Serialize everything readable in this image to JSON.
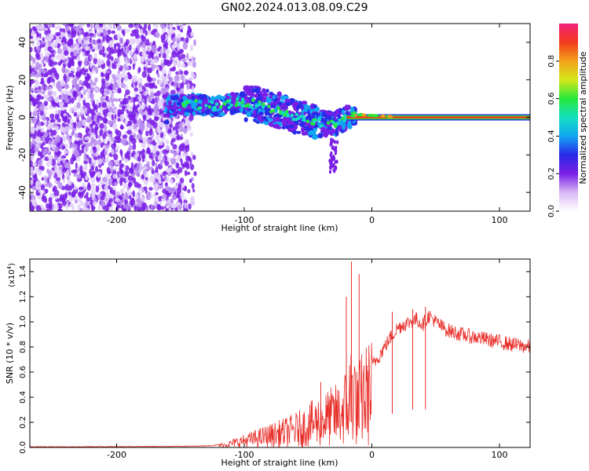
{
  "title": "GN02.2024.013.08.09.C29",
  "colors": {
    "snr_line": "#e8302b",
    "colormap": [
      "#ffffff",
      "#d9b8f5",
      "#7a1fe6",
      "#2a2ae8",
      "#12a6f2",
      "#12e0c0",
      "#27e83a",
      "#d4e81a",
      "#f2a21a",
      "#f23a1a",
      "#f2207a"
    ]
  },
  "chart_data": [
    {
      "type": "heatmap",
      "xlabel": "Height of straight line (km)",
      "ylabel": "Frequency (Hz)",
      "xlim": [
        -268,
        124
      ],
      "ylim": [
        -50,
        50
      ],
      "xticks": [
        -200,
        -100,
        0,
        100
      ],
      "yticks": [
        -40,
        -20,
        0,
        20,
        40
      ],
      "colorbar": {
        "label": "Normalized spectral amplitude",
        "range": [
          0,
          1
        ],
        "ticks": [
          "0.0",
          "0.2",
          "0.4",
          "0.6",
          "0.8"
        ]
      },
      "ridge": [
        {
          "x": -160,
          "y": 6
        },
        {
          "x": -140,
          "y": 7
        },
        {
          "x": -120,
          "y": 6
        },
        {
          "x": -105,
          "y": 8
        },
        {
          "x": -90,
          "y": 7
        },
        {
          "x": -75,
          "y": 4
        },
        {
          "x": -60,
          "y": 0
        },
        {
          "x": -45,
          "y": -2
        },
        {
          "x": -30,
          "y": -4
        },
        {
          "x": -20,
          "y": 0
        },
        {
          "x": -10,
          "y": 1.5
        },
        {
          "x": 0,
          "y": 1
        },
        {
          "x": 20,
          "y": 0.2
        },
        {
          "x": 60,
          "y": 0
        },
        {
          "x": 124,
          "y": 0
        }
      ]
    },
    {
      "type": "line",
      "xlabel": "Height of straight line (km)",
      "ylabel": "SNR (10 * v/v)",
      "yunit_multiplier": "(x10",
      "yunit_exponent": "4",
      "yunit_close": ")",
      "xlim": [
        -268,
        124
      ],
      "ylim": [
        0,
        1.5
      ],
      "xticks": [
        -200,
        -100,
        0,
        100
      ],
      "yticks": [
        "0.0",
        "0.2",
        "0.4",
        "0.6",
        "0.8",
        "1.0",
        "1.2",
        "1.4"
      ],
      "series": [
        {
          "x": [
            -268,
            -240,
            -200,
            -160,
            -140,
            -125,
            -115,
            -105,
            -95,
            -85,
            -75,
            -65,
            -55,
            -45,
            -35,
            -25,
            -18,
            -15,
            -12,
            -8,
            -4,
            0,
            5,
            10,
            15,
            20,
            25,
            30,
            35,
            40,
            45,
            50,
            55,
            60,
            70,
            80,
            90,
            100,
            110,
            124
          ],
          "y": [
            0.005,
            0.005,
            0.007,
            0.008,
            0.01,
            0.015,
            0.03,
            0.06,
            0.09,
            0.12,
            0.15,
            0.18,
            0.22,
            0.28,
            0.33,
            0.38,
            0.5,
            0.75,
            0.45,
            0.55,
            0.6,
            0.65,
            0.72,
            0.8,
            0.88,
            0.95,
            0.98,
            1.0,
            1.02,
            0.98,
            1.05,
            1.0,
            0.96,
            0.93,
            0.9,
            0.88,
            0.86,
            0.84,
            0.82,
            0.8
          ]
        }
      ],
      "spikes": [
        {
          "x": -16,
          "y": 1.48
        },
        {
          "x": -10,
          "y": 1.38
        },
        {
          "x": -20,
          "y": 1.2
        },
        {
          "x": -40,
          "y": 0.52
        },
        {
          "x": 42,
          "y": 1.12
        },
        {
          "x": 32,
          "y": 1.1
        },
        {
          "x": 16,
          "y": 1.08
        }
      ]
    }
  ]
}
